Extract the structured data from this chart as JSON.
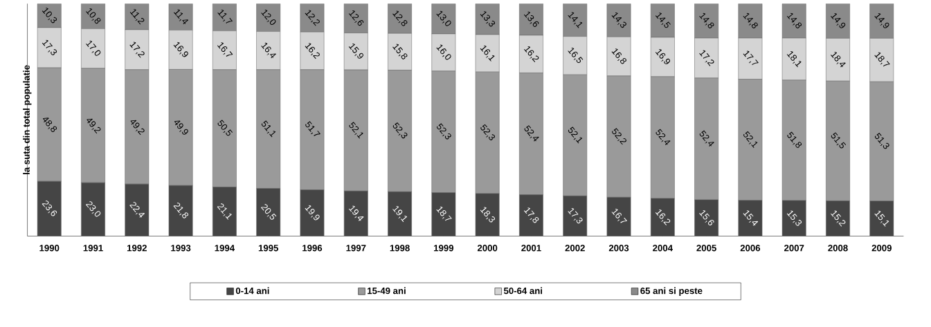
{
  "chart_data": {
    "type": "bar",
    "stacked": true,
    "ylabel": "la suta din total populatie",
    "legend": "bottom",
    "tick_labels": "x",
    "categories": [
      "1990",
      "1991",
      "1992",
      "1993",
      "1994",
      "1995",
      "1996",
      "1997",
      "1998",
      "1999",
      "2000",
      "2001",
      "2002",
      "2003",
      "2004",
      "2005",
      "2006",
      "2007",
      "2008",
      "2009"
    ],
    "series": [
      {
        "name": "0-14 ani",
        "color": "#454545",
        "values": [
          23.6,
          23.0,
          22.4,
          21.8,
          21.1,
          20.5,
          19.9,
          19.4,
          19.1,
          18.7,
          18.3,
          17.8,
          17.3,
          16.7,
          16.2,
          15.6,
          15.4,
          15.3,
          15.2,
          15.1
        ],
        "value_labels": [
          "23,6",
          "23,0",
          "22,4",
          "21,8",
          "21,1",
          "20,5",
          "19,9",
          "19,4",
          "19,1",
          "18,7",
          "18,3",
          "17,8",
          "17,3",
          "16,7",
          "16,2",
          "15,6",
          "15,4",
          "15,3",
          "15,2",
          "15,1"
        ]
      },
      {
        "name": "15-49 ani",
        "color": "#9a9a9a",
        "values": [
          48.8,
          49.2,
          49.2,
          49.9,
          50.5,
          51.1,
          51.7,
          52.1,
          52.3,
          52.3,
          52.3,
          52.4,
          52.1,
          52.2,
          52.4,
          52.4,
          52.1,
          51.8,
          51.5,
          51.3
        ],
        "value_labels": [
          "48,8",
          "49,2",
          "49,2",
          "49,9",
          "50,5",
          "51,1",
          "51,7",
          "52,1",
          "52,3",
          "52,3",
          "52,3",
          "52,4",
          "52,1",
          "52,2",
          "52,4",
          "52,4",
          "52,1",
          "51,8",
          "51,5",
          "51,3"
        ]
      },
      {
        "name": "50-64 ani",
        "color": "#d4d4d4",
        "values": [
          17.3,
          17.0,
          17.2,
          16.9,
          16.7,
          16.4,
          16.2,
          15.9,
          15.8,
          16.0,
          16.1,
          16.2,
          16.5,
          16.8,
          16.9,
          17.2,
          17.7,
          18.1,
          18.4,
          18.7
        ],
        "value_labels": [
          "17,3",
          "17,0",
          "17,2",
          "16,9",
          "16,7",
          "16,4",
          "16,2",
          "15,9",
          "15,8",
          "16,0",
          "16,1",
          "16,2",
          "16,5",
          "16,8",
          "16,9",
          "17,2",
          "17,7",
          "18,1",
          "18,4",
          "18,7"
        ]
      },
      {
        "name": "65 ani si peste",
        "color": "#8a8a8a",
        "values": [
          10.3,
          10.8,
          11.2,
          11.4,
          11.7,
          12.0,
          12.2,
          12.6,
          12.8,
          13.0,
          13.3,
          13.6,
          14.1,
          14.3,
          14.5,
          14.8,
          14.8,
          14.8,
          14.9,
          14.9
        ],
        "value_labels": [
          "10,3",
          "10,8",
          "11,2",
          "11,4",
          "11,7",
          "12,0",
          "12,2",
          "12,6",
          "12,8",
          "13,0",
          "13,3",
          "13,6",
          "14,1",
          "14,3",
          "14,5",
          "14,8",
          "14,8",
          "14,8",
          "14,9",
          "14,9"
        ]
      }
    ]
  }
}
